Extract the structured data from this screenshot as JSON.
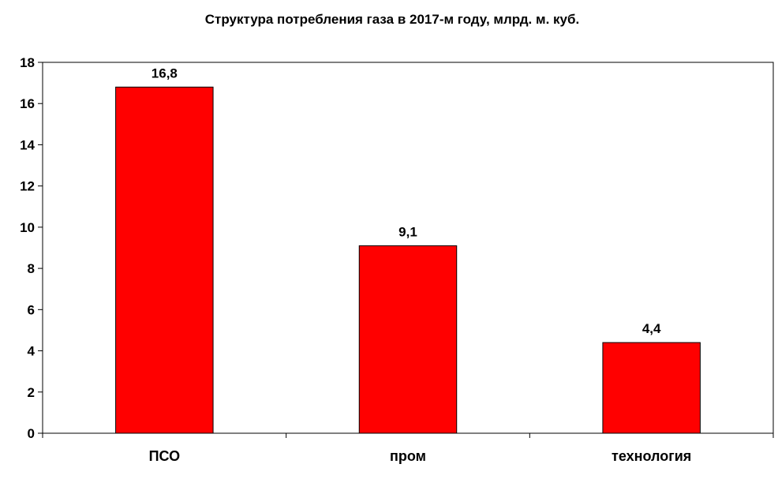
{
  "chart_data": {
    "type": "bar",
    "title": "Структура потребления газа в 2017-м году, млрд. м. куб.",
    "categories": [
      "ПСО",
      "пром",
      "технология"
    ],
    "values": [
      16.8,
      9.1,
      4.4
    ],
    "value_labels": [
      "16,8",
      "9,1",
      "4,4"
    ],
    "y_ticks": [
      "0",
      "2",
      "4",
      "6",
      "8",
      "10",
      "12",
      "14",
      "16",
      "18"
    ],
    "xlabel": "",
    "ylabel": "",
    "ylim": [
      0,
      18
    ],
    "grid": false,
    "legend": "none",
    "bar_color": "#ff0000",
    "bar_stroke": "#000000"
  }
}
